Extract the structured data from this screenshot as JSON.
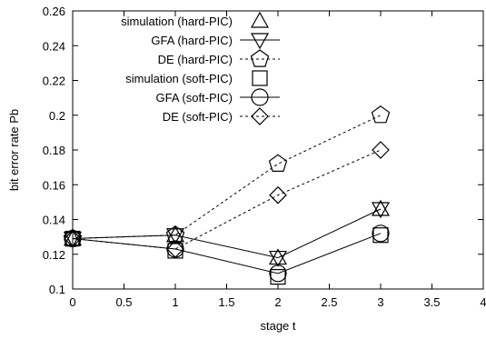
{
  "chart_data": {
    "type": "line",
    "title": "",
    "xlabel": "stage t",
    "ylabel": "bit error rate Pb",
    "xlim": [
      0,
      4
    ],
    "ylim": [
      0.1,
      0.26
    ],
    "xticks": [
      0,
      0.5,
      1,
      1.5,
      2,
      2.5,
      3,
      3.5,
      4
    ],
    "xtick_labels": [
      "0",
      "0.5",
      "1",
      "1.5",
      "2",
      "2.5",
      "3",
      "3.5",
      "4"
    ],
    "yticks": [
      0.1,
      0.12,
      0.14,
      0.16,
      0.18,
      0.2,
      0.22,
      0.24,
      0.26
    ],
    "ytick_labels": [
      "0.1",
      "0.12",
      "0.14",
      "0.16",
      "0.18",
      "0.2",
      "0.22",
      "0.24",
      "0.26"
    ],
    "grid": false,
    "legend_position": "top-left",
    "series": [
      {
        "name": "simulation (hard-PIC)",
        "marker": "triangle-up",
        "line": "none",
        "x": [
          0,
          1,
          2,
          3
        ],
        "y": [
          0.129,
          0.131,
          0.118,
          0.146
        ]
      },
      {
        "name": "GFA (hard-PIC)",
        "marker": "triangle-down",
        "line": "solid",
        "x": [
          0,
          1,
          2,
          3
        ],
        "y": [
          0.129,
          0.131,
          0.118,
          0.146
        ]
      },
      {
        "name": "DE (hard-PIC)",
        "marker": "pentagon",
        "line": "dashed",
        "x": [
          0,
          1,
          2,
          3
        ],
        "y": [
          0.129,
          0.131,
          0.172,
          0.2
        ]
      },
      {
        "name": "simulation (soft-PIC)",
        "marker": "square",
        "line": "none",
        "x": [
          0,
          1,
          2,
          3
        ],
        "y": [
          0.129,
          0.122,
          0.107,
          0.131
        ]
      },
      {
        "name": "GFA (soft-PIC)",
        "marker": "circle",
        "line": "solid",
        "x": [
          0,
          1,
          2,
          3
        ],
        "y": [
          0.129,
          0.123,
          0.109,
          0.132
        ]
      },
      {
        "name": "DE (soft-PIC)",
        "marker": "diamond",
        "line": "dashed",
        "x": [
          0,
          1,
          2,
          3
        ],
        "y": [
          0.129,
          0.123,
          0.154,
          0.18
        ]
      }
    ]
  }
}
